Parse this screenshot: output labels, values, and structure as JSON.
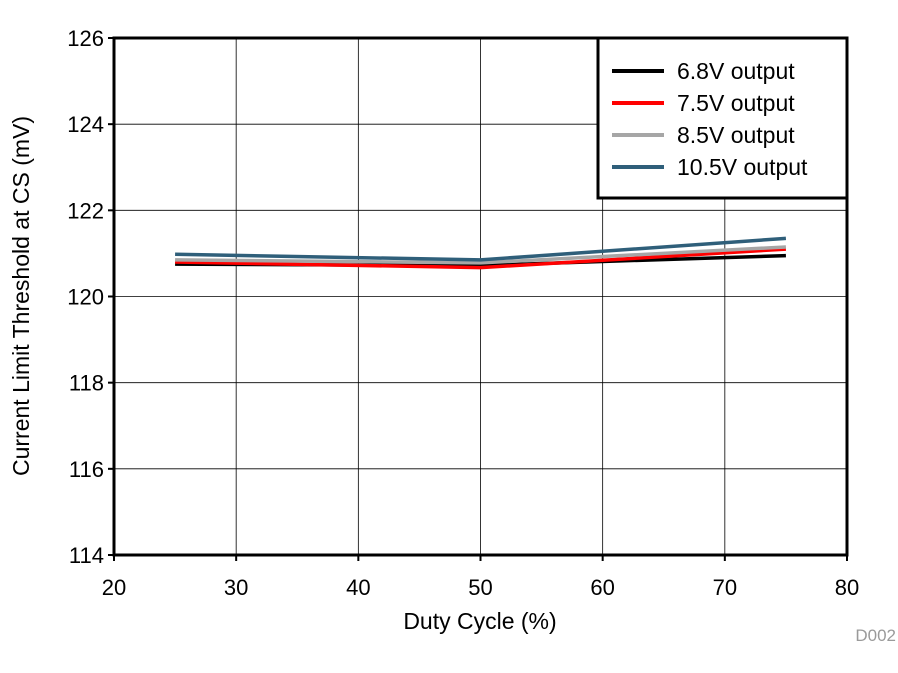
{
  "chart_data": {
    "type": "line",
    "xlabel": "Duty Cycle (%)",
    "ylabel": "Current Limit Threshold at CS (mV)",
    "xlim": [
      20,
      80
    ],
    "ylim": [
      114,
      126
    ],
    "xticks": [
      20,
      30,
      40,
      50,
      60,
      70,
      80
    ],
    "yticks": [
      114,
      116,
      118,
      120,
      122,
      124,
      126
    ],
    "grid": true,
    "legend_position": "top-right",
    "x": [
      25,
      50,
      75
    ],
    "series": [
      {
        "name": "6.8V output",
        "color": "#000000",
        "values": [
          120.75,
          120.72,
          120.95
        ]
      },
      {
        "name": "7.5V output",
        "color": "#ff0000",
        "values": [
          120.8,
          120.67,
          121.1
        ]
      },
      {
        "name": "8.5V output",
        "color": "#a6a6a6",
        "values": [
          120.85,
          120.78,
          121.15
        ]
      },
      {
        "name": "10.5V output",
        "color": "#2f5f7a",
        "values": [
          120.98,
          120.85,
          121.35
        ]
      }
    ],
    "annotation": "D002"
  }
}
